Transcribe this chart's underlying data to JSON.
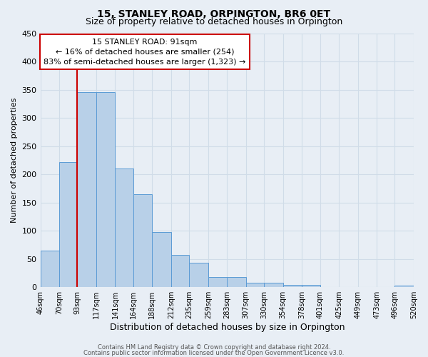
{
  "title": "15, STANLEY ROAD, ORPINGTON, BR6 0ET",
  "subtitle": "Size of property relative to detached houses in Orpington",
  "xlabel": "Distribution of detached houses by size in Orpington",
  "ylabel": "Number of detached properties",
  "bin_edges": [
    46,
    70,
    93,
    117,
    141,
    164,
    188,
    212,
    235,
    259,
    283,
    307,
    330,
    354,
    378,
    401,
    425,
    449,
    473,
    496,
    520
  ],
  "bar_heights": [
    65,
    222,
    345,
    345,
    210,
    165,
    98,
    57,
    43,
    18,
    18,
    8,
    8,
    4,
    4,
    0,
    0,
    0,
    0,
    3
  ],
  "bar_color": "#b8d0e8",
  "bar_edge_color": "#5b9bd5",
  "tick_labels": [
    "46sqm",
    "70sqm",
    "93sqm",
    "117sqm",
    "141sqm",
    "164sqm",
    "188sqm",
    "212sqm",
    "235sqm",
    "259sqm",
    "283sqm",
    "307sqm",
    "330sqm",
    "354sqm",
    "378sqm",
    "401sqm",
    "425sqm",
    "449sqm",
    "473sqm",
    "496sqm",
    "520sqm"
  ],
  "vline_x": 93,
  "vline_color": "#cc0000",
  "ylim": [
    0,
    450
  ],
  "yticks": [
    0,
    50,
    100,
    150,
    200,
    250,
    300,
    350,
    400,
    450
  ],
  "annotation_title": "15 STANLEY ROAD: 91sqm",
  "annotation_line1": "← 16% of detached houses are smaller (254)",
  "annotation_line2": "83% of semi-detached houses are larger (1,323) →",
  "annotation_box_facecolor": "#ffffff",
  "annotation_box_edgecolor": "#cc0000",
  "footnote1": "Contains HM Land Registry data © Crown copyright and database right 2024.",
  "footnote2": "Contains public sector information licensed under the Open Government Licence v3.0.",
  "background_color": "#e8eef5",
  "grid_color": "#d0dce8",
  "title_fontsize": 10,
  "subtitle_fontsize": 9,
  "ylabel_fontsize": 8,
  "xlabel_fontsize": 9,
  "tick_fontsize": 7,
  "ytick_fontsize": 8,
  "annot_fontsize": 8,
  "footnote_fontsize": 6
}
